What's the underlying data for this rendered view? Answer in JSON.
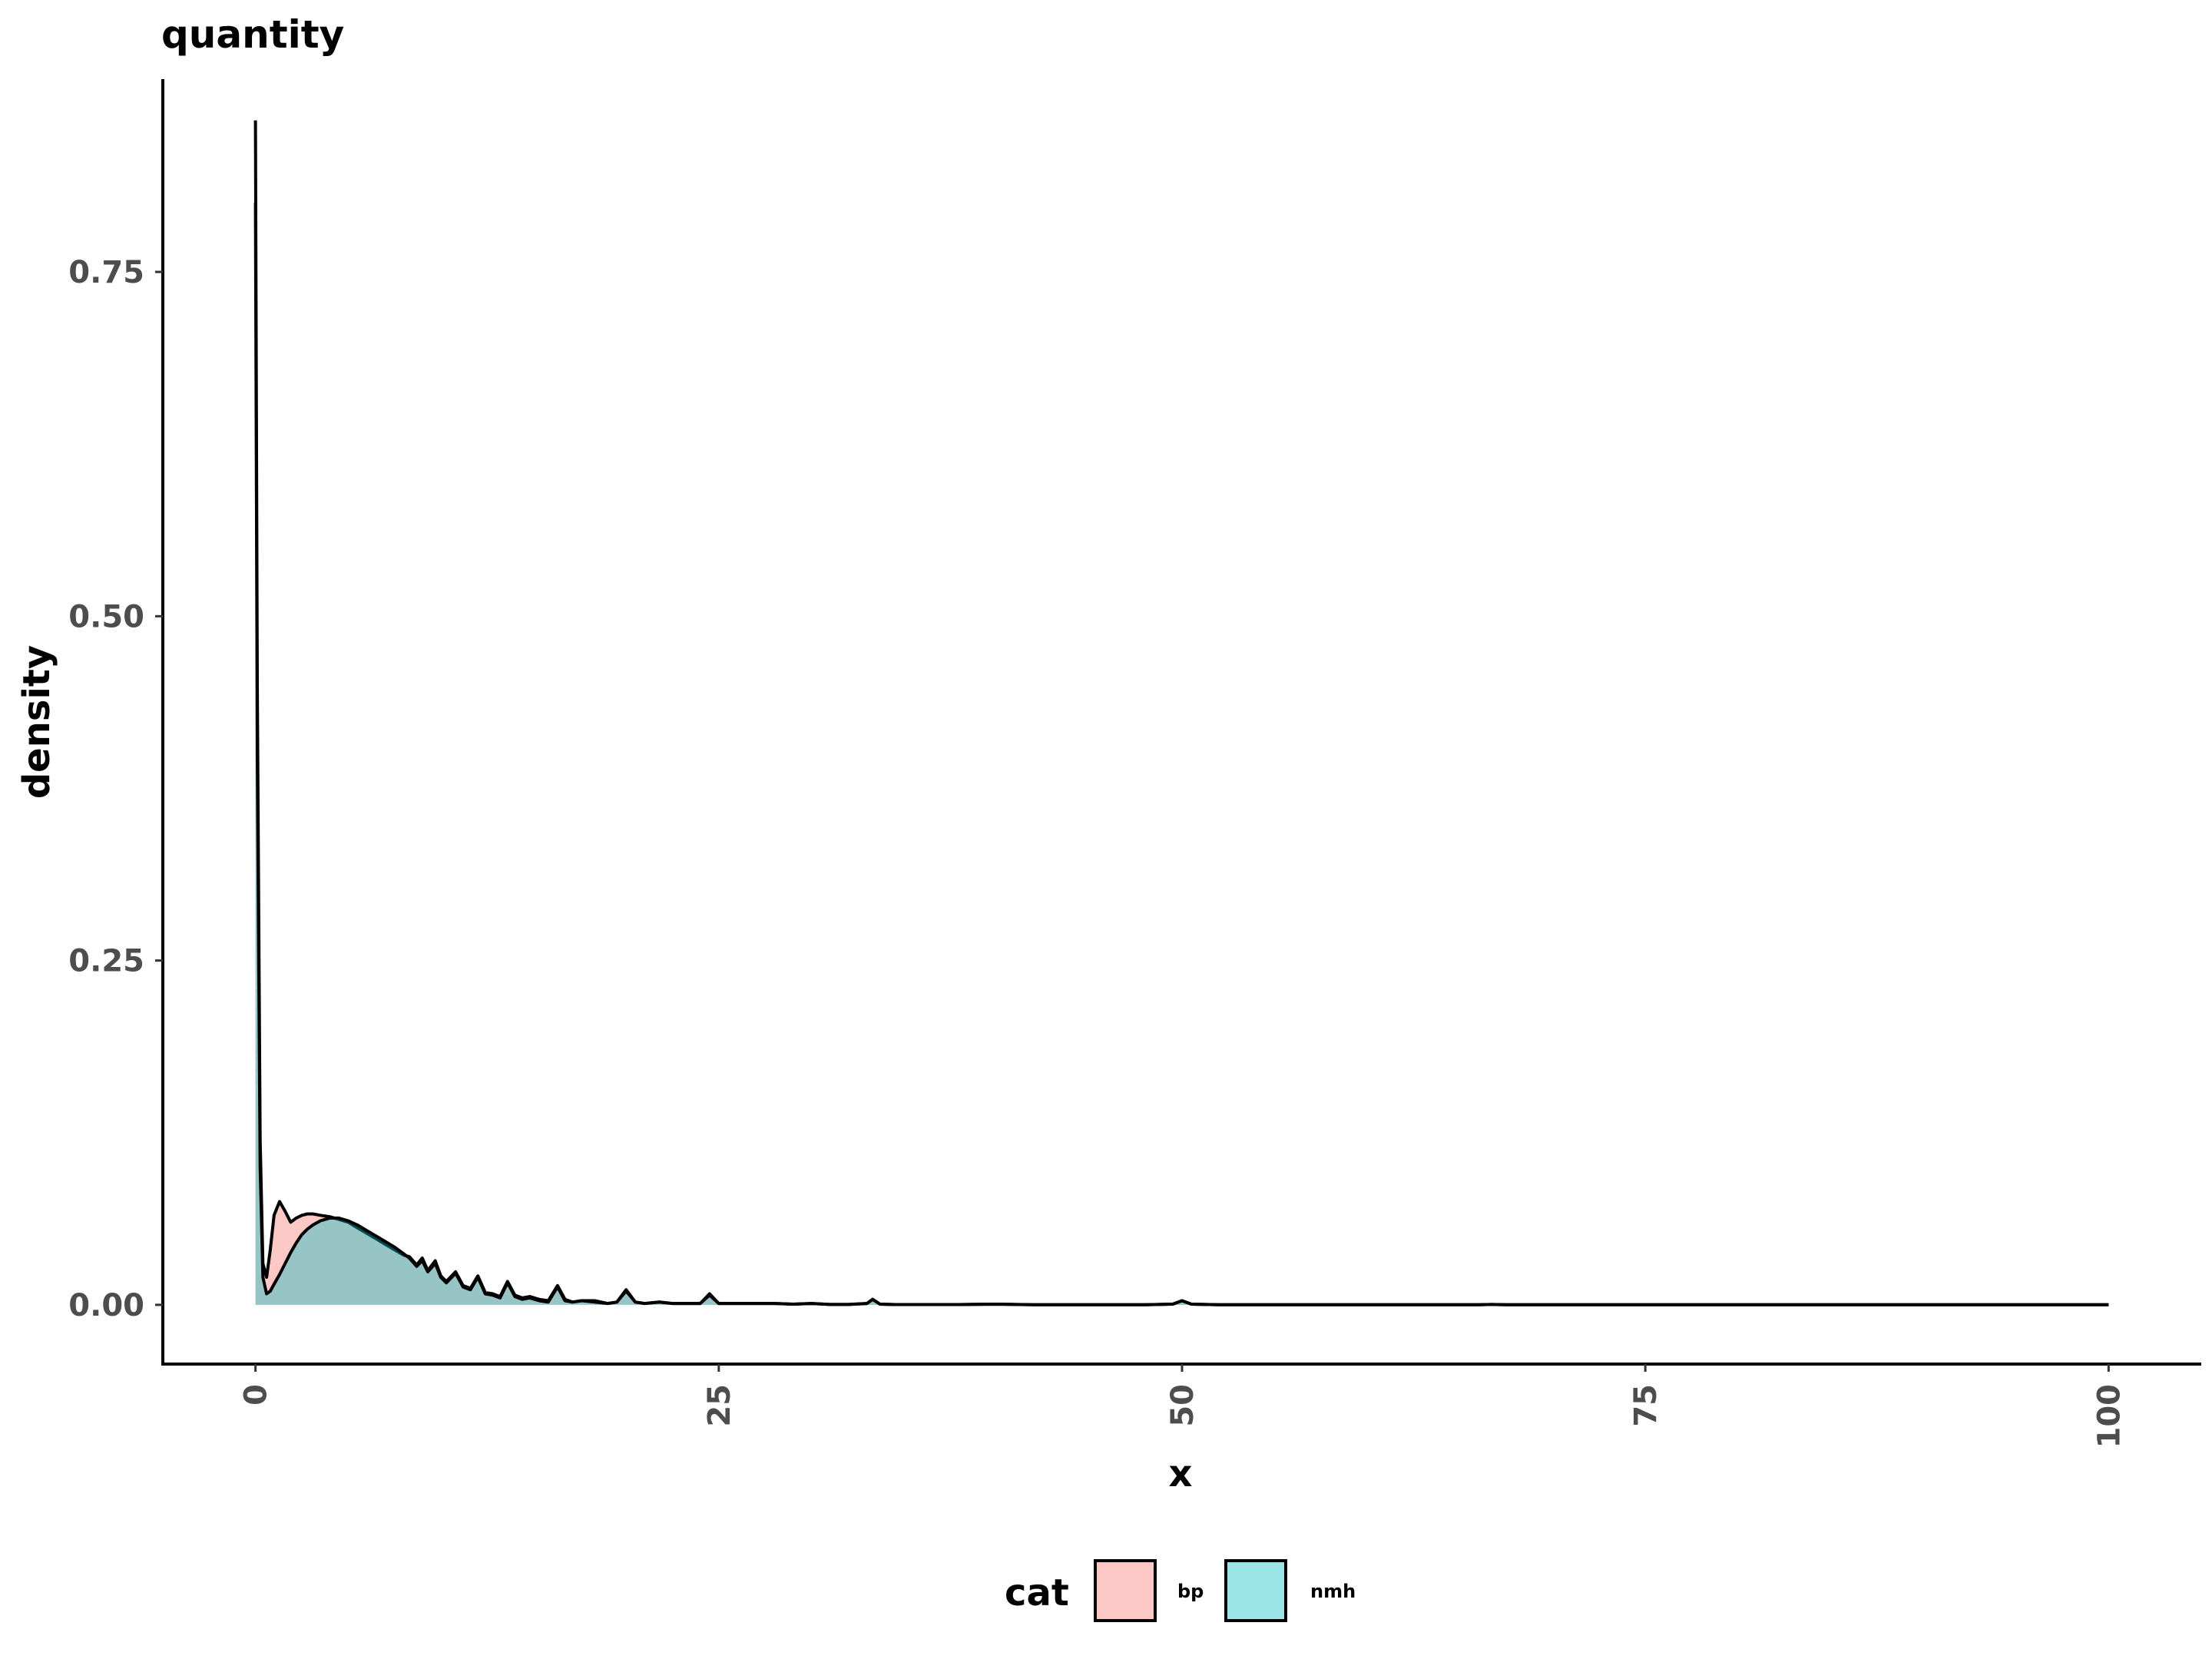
{
  "chart_data": {
    "type": "area",
    "title": "quantity",
    "xlabel": "x",
    "ylabel": "density",
    "xlim": [
      -5,
      105
    ],
    "ylim": [
      -0.043,
      0.89
    ],
    "x_ticks": [
      0,
      25,
      50,
      75,
      100
    ],
    "x_tick_labels": [
      "0",
      "25",
      "50",
      "75",
      "100"
    ],
    "y_ticks": [
      0,
      0.25,
      0.5,
      0.75
    ],
    "y_tick_labels": [
      "0.00",
      "0.25",
      "0.50",
      "0.75"
    ],
    "grid": false,
    "legend": {
      "title": "cat",
      "position": "bottom",
      "entries": [
        "bp",
        "nmh"
      ]
    },
    "series": [
      {
        "name": "bp",
        "color": "#F8766D",
        "x": [
          0,
          0.1,
          0.25,
          0.4,
          0.6,
          0.8,
          1.0,
          1.3,
          1.6,
          1.9,
          2.2,
          2.5,
          2.8,
          3.1,
          3.5,
          4,
          4.5,
          5,
          5.5,
          6,
          6.5,
          7,
          7.5,
          8,
          8.3,
          8.7,
          9,
          9.3,
          9.7,
          10,
          10.3,
          10.8,
          11.2,
          11.6,
          12,
          12.4,
          12.8,
          13.2,
          13.6,
          14,
          14.4,
          14.8,
          15.3,
          15.8,
          16.3,
          16.7,
          17.1,
          17.6,
          18.3,
          19,
          19.5,
          20,
          20.5,
          21,
          21.8,
          22.5,
          23.2,
          24,
          24.5,
          25,
          25.5,
          26.5,
          28,
          29,
          30,
          31,
          32,
          33,
          33.3,
          33.7,
          34.5,
          36,
          38,
          40,
          42,
          45,
          48,
          49.5,
          50,
          50.5,
          52,
          55,
          60,
          66,
          66.7,
          67.5,
          75,
          85,
          95,
          100
        ],
        "y": [
          0.86,
          0.45,
          0.12,
          0.03,
          0.02,
          0.04,
          0.065,
          0.075,
          0.068,
          0.06,
          0.063,
          0.065,
          0.066,
          0.066,
          0.065,
          0.064,
          0.062,
          0.06,
          0.056,
          0.052,
          0.048,
          0.044,
          0.04,
          0.036,
          0.035,
          0.029,
          0.034,
          0.025,
          0.032,
          0.021,
          0.017,
          0.024,
          0.014,
          0.012,
          0.021,
          0.009,
          0.008,
          0.006,
          0.017,
          0.007,
          0.005,
          0.006,
          0.004,
          0.003,
          0.014,
          0.004,
          0.002,
          0.003,
          0.003,
          0.001,
          0.002,
          0.011,
          0.002,
          0.001,
          0.002,
          0.001,
          0.001,
          0.001,
          0.008,
          0.001,
          0.001,
          0.001,
          0.001,
          0.0005,
          0.001,
          0.0003,
          0.0003,
          0.001,
          0.004,
          0.0005,
          0.0002,
          0.0002,
          0.0002,
          0.0005,
          0.0001,
          0.0001,
          0.0001,
          0.0005,
          0.003,
          0.0005,
          0.0001,
          0.0001,
          0.0001,
          0.0001,
          0.0003,
          0.0001,
          0.0001,
          0.0001,
          0.0001,
          0.0001
        ]
      },
      {
        "name": "nmh",
        "color": "#00BFC4",
        "x": [
          0,
          0.1,
          0.25,
          0.4,
          0.6,
          0.8,
          1.0,
          1.3,
          1.6,
          1.9,
          2.2,
          2.5,
          2.8,
          3.1,
          3.5,
          4,
          4.5,
          5,
          5.5,
          6,
          6.5,
          7,
          7.5,
          8,
          8.3,
          8.7,
          9,
          9.3,
          9.7,
          10,
          10.3,
          10.8,
          11.2,
          11.6,
          12,
          12.4,
          12.8,
          13.2,
          13.6,
          14,
          14.4,
          14.8,
          15.3,
          15.8,
          16.3,
          16.7,
          17.1,
          17.6,
          18.3,
          19,
          19.5,
          20,
          20.5,
          21,
          21.8,
          22.5,
          23.2,
          24,
          24.5,
          25,
          25.5,
          26.5,
          28,
          29,
          30,
          31,
          32,
          33,
          33.3,
          33.7,
          34.5,
          36,
          38,
          40,
          42,
          45,
          48,
          49.5,
          50,
          50.5,
          52,
          55,
          60,
          66,
          66.7,
          67.5,
          75,
          85,
          95,
          100
        ],
        "y": [
          0.8,
          0.4,
          0.1,
          0.02,
          0.008,
          0.01,
          0.015,
          0.022,
          0.03,
          0.038,
          0.045,
          0.051,
          0.055,
          0.058,
          0.061,
          0.063,
          0.063,
          0.061,
          0.058,
          0.054,
          0.05,
          0.046,
          0.042,
          0.037,
          0.034,
          0.028,
          0.032,
          0.024,
          0.03,
          0.02,
          0.016,
          0.023,
          0.013,
          0.011,
          0.02,
          0.008,
          0.007,
          0.005,
          0.016,
          0.006,
          0.004,
          0.005,
          0.003,
          0.002,
          0.013,
          0.003,
          0.002,
          0.003,
          0.002,
          0.001,
          0.002,
          0.01,
          0.002,
          0.001,
          0.002,
          0.001,
          0.001,
          0.001,
          0.007,
          0.001,
          0.001,
          0.001,
          0.001,
          0.0005,
          0.001,
          0.0003,
          0.0003,
          0.001,
          0.004,
          0.0005,
          0.0002,
          0.0002,
          0.0002,
          0.0005,
          0.0001,
          0.0001,
          0.0001,
          0.0005,
          0.003,
          0.0005,
          0.0001,
          0.0001,
          0.0001,
          0.0001,
          0.0003,
          0.0001,
          0.0001,
          0.0001,
          0.0001,
          0.0001
        ]
      }
    ]
  }
}
